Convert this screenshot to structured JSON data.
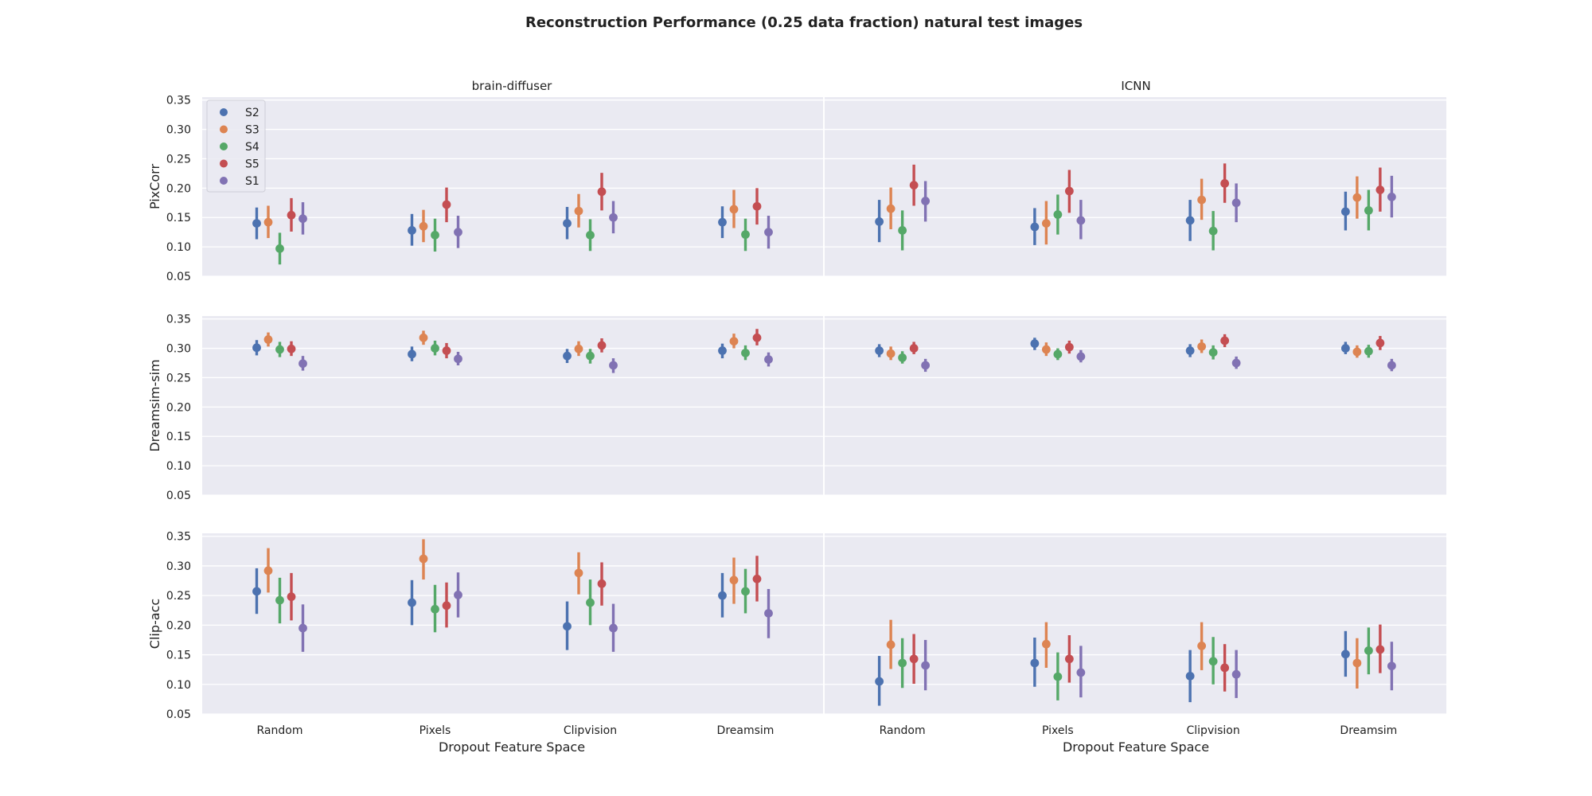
{
  "chart_data": {
    "type": "pointplot",
    "title": "Reconstruction Performance (0.25 data fraction) natural test images",
    "columns": [
      "brain-diffuser",
      "ICNN"
    ],
    "metrics": [
      "PixCorr",
      "Dreamsim-sim",
      "Clip-acc"
    ],
    "categories": [
      "Random",
      "Pixels",
      "Clipvision",
      "Dreamsim"
    ],
    "xlabel": "Dropout Feature Space",
    "ylim": [
      0.05,
      0.355
    ],
    "yticks": [
      "0.05",
      "0.10",
      "0.15",
      "0.20",
      "0.25",
      "0.30",
      "0.35"
    ],
    "legend_position": "upper-left",
    "series": [
      {
        "name": "S2",
        "color": "#4c72b0"
      },
      {
        "name": "S3",
        "color": "#dd8452"
      },
      {
        "name": "S4",
        "color": "#55a868"
      },
      {
        "name": "S5",
        "color": "#c44e52"
      },
      {
        "name": "S1",
        "color": "#8172b3"
      }
    ],
    "values": {
      "PixCorr": {
        "brain-diffuser": {
          "Random": [
            [
              0.14,
              0.113,
              0.167
            ],
            [
              0.142,
              0.115,
              0.17
            ],
            [
              0.097,
              0.07,
              0.124
            ],
            [
              0.154,
              0.126,
              0.183
            ],
            [
              0.148,
              0.121,
              0.176
            ]
          ],
          "Pixels": [
            [
              0.128,
              0.102,
              0.156
            ],
            [
              0.135,
              0.108,
              0.163
            ],
            [
              0.12,
              0.092,
              0.148
            ],
            [
              0.172,
              0.142,
              0.201
            ],
            [
              0.125,
              0.098,
              0.153
            ]
          ],
          "Clipvision": [
            [
              0.14,
              0.113,
              0.168
            ],
            [
              0.161,
              0.133,
              0.19
            ],
            [
              0.12,
              0.093,
              0.147
            ],
            [
              0.194,
              0.162,
              0.226
            ],
            [
              0.15,
              0.123,
              0.178
            ]
          ],
          "Dreamsim": [
            [
              0.142,
              0.115,
              0.169
            ],
            [
              0.164,
              0.132,
              0.197
            ],
            [
              0.121,
              0.093,
              0.148
            ],
            [
              0.169,
              0.138,
              0.2
            ],
            [
              0.125,
              0.097,
              0.153
            ]
          ]
        },
        "ICNN": {
          "Random": [
            [
              0.143,
              0.108,
              0.18
            ],
            [
              0.165,
              0.13,
              0.201
            ],
            [
              0.128,
              0.094,
              0.162
            ],
            [
              0.205,
              0.17,
              0.24
            ],
            [
              0.178,
              0.143,
              0.212
            ]
          ],
          "Pixels": [
            [
              0.134,
              0.103,
              0.166
            ],
            [
              0.14,
              0.104,
              0.178
            ],
            [
              0.155,
              0.121,
              0.189
            ],
            [
              0.195,
              0.158,
              0.231
            ],
            [
              0.145,
              0.113,
              0.18
            ]
          ],
          "Clipvision": [
            [
              0.145,
              0.11,
              0.18
            ],
            [
              0.18,
              0.146,
              0.216
            ],
            [
              0.127,
              0.094,
              0.161
            ],
            [
              0.208,
              0.175,
              0.242
            ],
            [
              0.175,
              0.142,
              0.208
            ]
          ],
          "Dreamsim": [
            [
              0.16,
              0.128,
              0.194
            ],
            [
              0.184,
              0.148,
              0.22
            ],
            [
              0.162,
              0.128,
              0.197
            ],
            [
              0.197,
              0.16,
              0.235
            ],
            [
              0.185,
              0.15,
              0.221
            ]
          ]
        }
      },
      "Dreamsim-sim": {
        "brain-diffuser": {
          "Random": [
            [
              0.301,
              0.288,
              0.314
            ],
            [
              0.315,
              0.303,
              0.327
            ],
            [
              0.298,
              0.285,
              0.311
            ],
            [
              0.299,
              0.287,
              0.312
            ],
            [
              0.274,
              0.262,
              0.287
            ]
          ],
          "Pixels": [
            [
              0.29,
              0.278,
              0.303
            ],
            [
              0.318,
              0.306,
              0.33
            ],
            [
              0.3,
              0.288,
              0.313
            ],
            [
              0.296,
              0.283,
              0.309
            ],
            [
              0.282,
              0.271,
              0.294
            ]
          ],
          "Clipvision": [
            [
              0.287,
              0.275,
              0.299
            ],
            [
              0.299,
              0.287,
              0.312
            ],
            [
              0.287,
              0.274,
              0.299
            ],
            [
              0.305,
              0.293,
              0.317
            ],
            [
              0.271,
              0.258,
              0.283
            ]
          ],
          "Dreamsim": [
            [
              0.296,
              0.283,
              0.308
            ],
            [
              0.312,
              0.3,
              0.325
            ],
            [
              0.292,
              0.28,
              0.305
            ],
            [
              0.318,
              0.305,
              0.333
            ],
            [
              0.281,
              0.269,
              0.293
            ]
          ]
        },
        "ICNN": {
          "Random": [
            [
              0.296,
              0.285,
              0.307
            ],
            [
              0.291,
              0.28,
              0.303
            ],
            [
              0.284,
              0.274,
              0.295
            ],
            [
              0.3,
              0.29,
              0.311
            ],
            [
              0.271,
              0.26,
              0.282
            ]
          ],
          "Pixels": [
            [
              0.308,
              0.297,
              0.318
            ],
            [
              0.298,
              0.287,
              0.31
            ],
            [
              0.29,
              0.28,
              0.3
            ],
            [
              0.302,
              0.291,
              0.313
            ],
            [
              0.286,
              0.276,
              0.297
            ]
          ],
          "Clipvision": [
            [
              0.296,
              0.285,
              0.307
            ],
            [
              0.303,
              0.292,
              0.315
            ],
            [
              0.293,
              0.281,
              0.305
            ],
            [
              0.313,
              0.302,
              0.324
            ],
            [
              0.275,
              0.265,
              0.286
            ]
          ],
          "Dreamsim": [
            [
              0.3,
              0.29,
              0.311
            ],
            [
              0.294,
              0.284,
              0.305
            ],
            [
              0.295,
              0.284,
              0.306
            ],
            [
              0.309,
              0.297,
              0.321
            ],
            [
              0.271,
              0.261,
              0.282
            ]
          ]
        }
      },
      "Clip-acc": {
        "brain-diffuser": {
          "Random": [
            [
              0.257,
              0.219,
              0.296
            ],
            [
              0.292,
              0.255,
              0.33
            ],
            [
              0.242,
              0.203,
              0.28
            ],
            [
              0.248,
              0.208,
              0.288
            ],
            [
              0.195,
              0.155,
              0.235
            ]
          ],
          "Pixels": [
            [
              0.238,
              0.2,
              0.276
            ],
            [
              0.312,
              0.277,
              0.345
            ],
            [
              0.227,
              0.188,
              0.268
            ],
            [
              0.233,
              0.196,
              0.272
            ],
            [
              0.251,
              0.213,
              0.289
            ]
          ],
          "Clipvision": [
            [
              0.198,
              0.158,
              0.24
            ],
            [
              0.288,
              0.252,
              0.323
            ],
            [
              0.238,
              0.2,
              0.277
            ],
            [
              0.27,
              0.233,
              0.306
            ],
            [
              0.195,
              0.155,
              0.236
            ]
          ],
          "Dreamsim": [
            [
              0.25,
              0.213,
              0.288
            ],
            [
              0.276,
              0.236,
              0.314
            ],
            [
              0.257,
              0.22,
              0.295
            ],
            [
              0.278,
              0.24,
              0.317
            ],
            [
              0.22,
              0.178,
              0.261
            ]
          ]
        },
        "ICNN": {
          "Random": [
            [
              0.105,
              0.064,
              0.148
            ],
            [
              0.167,
              0.126,
              0.209
            ],
            [
              0.136,
              0.094,
              0.178
            ],
            [
              0.143,
              0.101,
              0.185
            ],
            [
              0.132,
              0.09,
              0.175
            ]
          ],
          "Pixels": [
            [
              0.136,
              0.096,
              0.179
            ],
            [
              0.168,
              0.128,
              0.205
            ],
            [
              0.113,
              0.073,
              0.154
            ],
            [
              0.143,
              0.103,
              0.183
            ],
            [
              0.12,
              0.078,
              0.165
            ]
          ],
          "Clipvision": [
            [
              0.114,
              0.07,
              0.158
            ],
            [
              0.165,
              0.124,
              0.205
            ],
            [
              0.139,
              0.1,
              0.18
            ],
            [
              0.128,
              0.088,
              0.168
            ],
            [
              0.117,
              0.077,
              0.158
            ]
          ],
          "Dreamsim": [
            [
              0.151,
              0.113,
              0.19
            ],
            [
              0.136,
              0.093,
              0.178
            ],
            [
              0.157,
              0.117,
              0.196
            ],
            [
              0.159,
              0.119,
              0.201
            ],
            [
              0.131,
              0.09,
              0.172
            ]
          ]
        }
      }
    }
  }
}
